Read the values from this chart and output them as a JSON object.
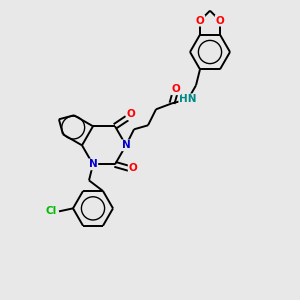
{
  "background_color": "#e8e8e8",
  "bond_color": "#000000",
  "atom_colors": {
    "O": "#ff0000",
    "N": "#0000cc",
    "Cl": "#00bb00",
    "H": "#008888",
    "C": "#000000"
  },
  "figsize": [
    3.0,
    3.0
  ],
  "dpi": 100,
  "lw": 1.4,
  "fontsize": 7.5
}
